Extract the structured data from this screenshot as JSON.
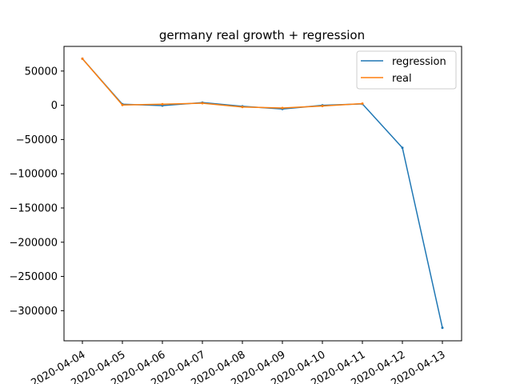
{
  "chart_data": {
    "type": "line",
    "title": "germany real growth + regression",
    "xlabel": "",
    "ylabel": "",
    "categories": [
      "2020-04-04",
      "2020-04-05",
      "2020-04-06",
      "2020-04-07",
      "2020-04-08",
      "2020-04-09",
      "2020-04-10",
      "2020-04-11",
      "2020-04-12",
      "2020-04-13"
    ],
    "y_ticks": [
      50000,
      0,
      -50000,
      -100000,
      -150000,
      -200000,
      -250000,
      -300000
    ],
    "ylim": [
      -344000,
      86000
    ],
    "grid": false,
    "legend_position": "upper-right",
    "series": [
      {
        "name": "regression",
        "color": "#1f77b4",
        "values": [
          68000,
          1500,
          -500,
          4000,
          -1500,
          -5500,
          0,
          2000,
          -62000,
          -325000
        ]
      },
      {
        "name": "real",
        "color": "#ff7f0e",
        "values": [
          68000,
          500,
          1500,
          3000,
          -2500,
          -4000,
          -1000,
          2500,
          null,
          null
        ]
      }
    ]
  }
}
